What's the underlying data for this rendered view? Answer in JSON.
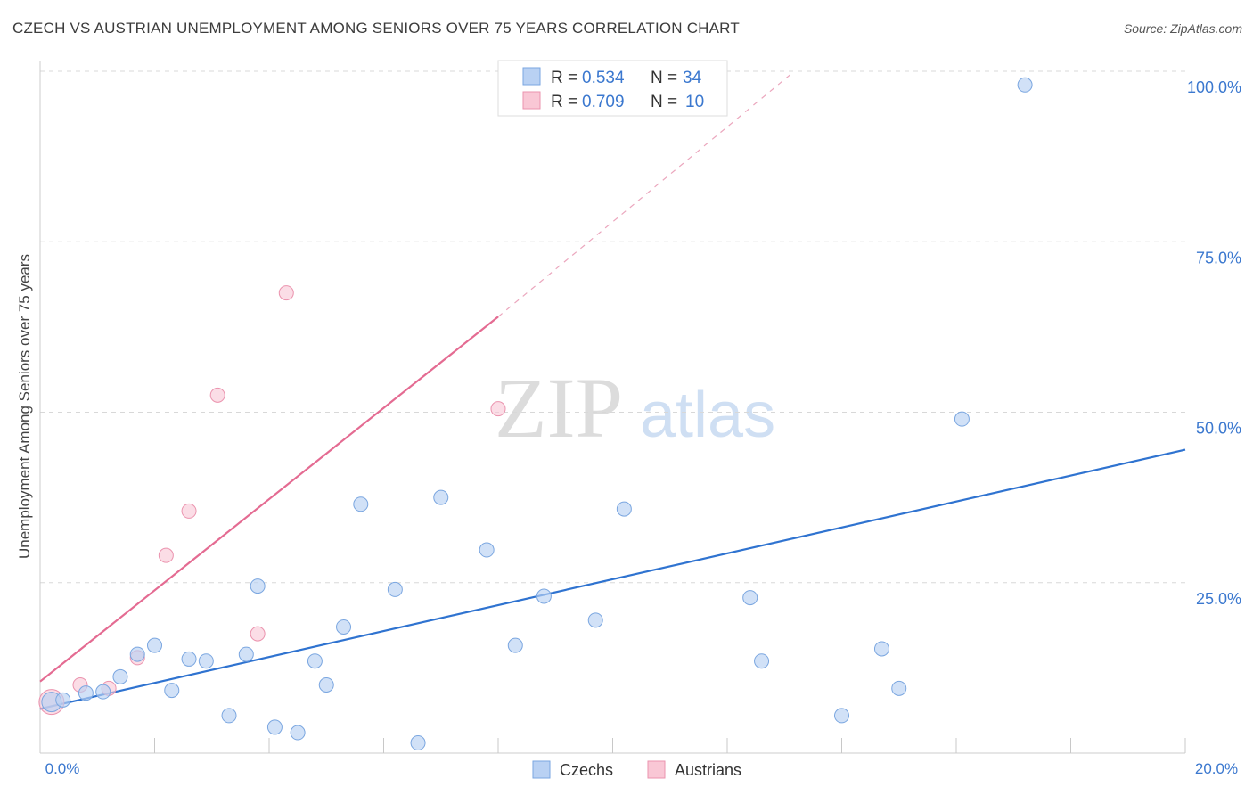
{
  "header": {
    "title": "CZECH VS AUSTRIAN UNEMPLOYMENT AMONG SENIORS OVER 75 YEARS CORRELATION CHART",
    "source": "Source: ZipAtlas.com"
  },
  "watermark": {
    "zip": "ZIP",
    "atlas": "atlas"
  },
  "legend_top": [
    {
      "r_label": "R =",
      "r_value": "0.534",
      "n_label": "N =",
      "n_value": "34"
    },
    {
      "r_label": "R =",
      "r_value": "0.709",
      "n_label": "N =",
      "n_value": "10"
    }
  ],
  "legend_bottom": [
    "Czechs",
    "Austrians"
  ],
  "colors": {
    "czech_fill": "#b9d1f3",
    "czech_stroke": "#7aa6e0",
    "czech_line": "#2f73d0",
    "austrian_fill": "#f9c7d5",
    "austrian_stroke": "#eb93ae",
    "austrian_line": "#e46b92",
    "tick_text": "#3b78cf",
    "grid": "#d8d8d8"
  },
  "chart_data": {
    "type": "scatter",
    "title": "CZECH VS AUSTRIAN UNEMPLOYMENT AMONG SENIORS OVER 75 YEARS CORRELATION CHART",
    "xlabel": "",
    "ylabel": "Unemployment Among Seniors over 75 years",
    "xlim": [
      0,
      20
    ],
    "ylim": [
      0,
      100
    ],
    "x_tick_labels": [
      "0.0%",
      "20.0%"
    ],
    "y_ticks": [
      25,
      50,
      75,
      100
    ],
    "y_tick_labels": [
      "25.0%",
      "50.0%",
      "75.0%",
      "100.0%"
    ],
    "grid": true,
    "legend": "top-center",
    "series": [
      {
        "name": "Czechs",
        "r": 0.534,
        "n": 34,
        "points": [
          [
            0.2,
            7.5
          ],
          [
            0.4,
            7.8
          ],
          [
            0.8,
            8.8
          ],
          [
            1.1,
            9.0
          ],
          [
            1.4,
            11.2
          ],
          [
            1.7,
            14.5
          ],
          [
            2.0,
            15.8
          ],
          [
            2.3,
            9.2
          ],
          [
            2.6,
            13.8
          ],
          [
            2.9,
            13.5
          ],
          [
            3.3,
            5.5
          ],
          [
            3.6,
            14.5
          ],
          [
            3.8,
            24.5
          ],
          [
            4.1,
            3.8
          ],
          [
            4.5,
            3.0
          ],
          [
            4.8,
            13.5
          ],
          [
            5.0,
            10.0
          ],
          [
            5.3,
            18.5
          ],
          [
            5.6,
            36.5
          ],
          [
            6.2,
            24.0
          ],
          [
            6.6,
            1.5
          ],
          [
            7.0,
            37.5
          ],
          [
            7.8,
            29.8
          ],
          [
            8.3,
            15.8
          ],
          [
            8.8,
            23.0
          ],
          [
            9.7,
            19.5
          ],
          [
            10.2,
            35.8
          ],
          [
            12.4,
            22.8
          ],
          [
            12.6,
            13.5
          ],
          [
            14.0,
            5.5
          ],
          [
            14.7,
            15.3
          ],
          [
            15.0,
            9.5
          ],
          [
            16.1,
            49.0
          ],
          [
            17.2,
            98.0
          ]
        ],
        "trend": {
          "x0": 0,
          "y0": 6.5,
          "x1": 20,
          "y1": 44.5
        }
      },
      {
        "name": "Austrians",
        "r": 0.709,
        "n": 10,
        "points": [
          [
            0.2,
            7.5
          ],
          [
            0.7,
            10.0
          ],
          [
            1.2,
            9.5
          ],
          [
            1.7,
            14.0
          ],
          [
            2.2,
            29.0
          ],
          [
            2.6,
            35.5
          ],
          [
            3.1,
            52.5
          ],
          [
            3.8,
            17.5
          ],
          [
            4.3,
            67.5
          ],
          [
            8.0,
            50.5
          ]
        ],
        "trend": {
          "x0": 0,
          "y0": 10.5,
          "x1": 8.0,
          "y1": 64.0
        },
        "trend_dashed": {
          "x0": 8.0,
          "y0": 64.0,
          "x1": 13.1,
          "y1": 99.5
        }
      }
    ]
  }
}
